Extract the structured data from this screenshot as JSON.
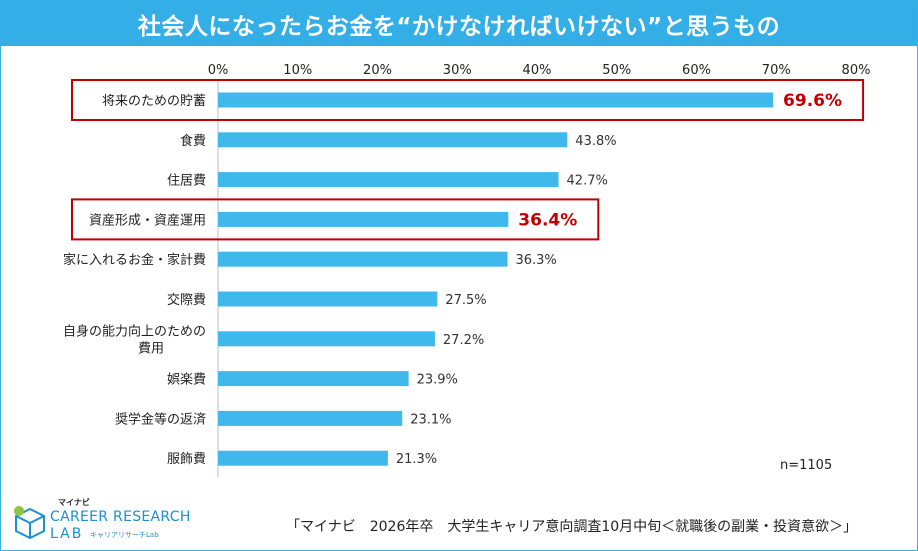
{
  "title": "社会人になったらお金を“かけなければいけない”と思うもの",
  "note": "n=1105",
  "source": "「マイナビ　2026年卒　大学生キャリア意向調査10月中旬＜就職後の副業・投資意欲＞」",
  "logo": {
    "brand": "マイナビ",
    "line1": "CAREER RESEARCH",
    "line2": "LAB",
    "sub": "キャリアリサーチLab"
  },
  "chart_data": {
    "type": "bar",
    "orientation": "horizontal",
    "xlim": [
      0,
      80
    ],
    "ticks": [
      "0%",
      "10%",
      "20%",
      "30%",
      "40%",
      "50%",
      "60%",
      "70%",
      "80%"
    ],
    "tick_values": [
      0,
      10,
      20,
      30,
      40,
      50,
      60,
      70,
      80
    ],
    "bar_color": "#3fb8ec",
    "highlight_color": "#c00000",
    "categories": [
      "将来のための貯蓄",
      "食費",
      "住居費",
      "資産形成・資産運用",
      "家に入れるお金・家計費",
      "交際費",
      "自身の能力向上のための費用",
      "娯楽費",
      "奨学金等の返済",
      "服飾費"
    ],
    "category_lines": [
      [
        "将来のための貯蓄"
      ],
      [
        "食費"
      ],
      [
        "住居費"
      ],
      [
        "資産形成・資産運用"
      ],
      [
        "家に入れるお金・家計費"
      ],
      [
        "交際費"
      ],
      [
        "自身の能力向上のための",
        "費用"
      ],
      [
        "娯楽費"
      ],
      [
        "奨学金等の返済"
      ],
      [
        "服飾費"
      ]
    ],
    "values": [
      69.6,
      43.8,
      42.7,
      36.4,
      36.3,
      27.5,
      27.2,
      23.9,
      23.1,
      21.3
    ],
    "value_labels": [
      "69.6%",
      "43.8%",
      "42.7%",
      "36.4%",
      "36.3%",
      "27.5%",
      "27.2%",
      "23.9%",
      "23.1%",
      "21.3%"
    ],
    "highlighted": [
      0,
      3
    ]
  }
}
